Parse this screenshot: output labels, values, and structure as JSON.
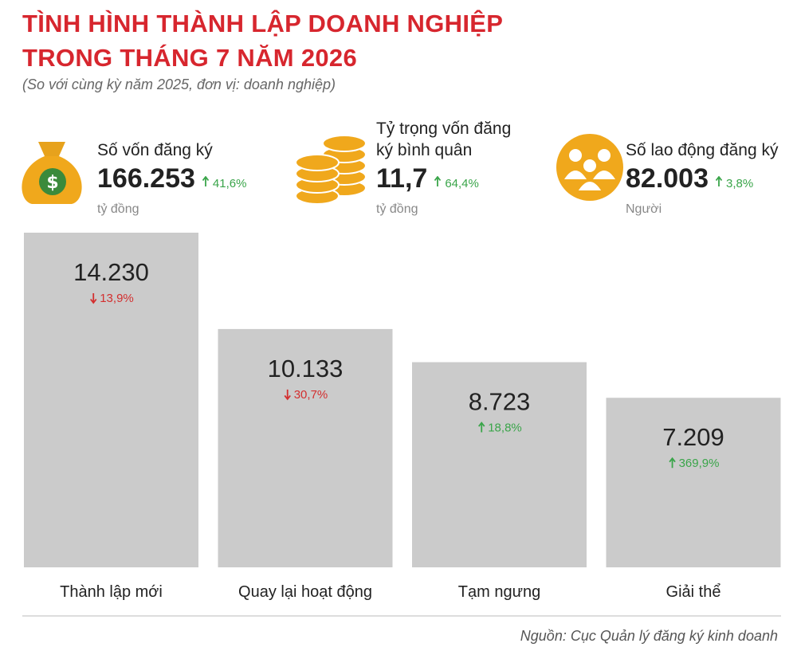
{
  "header": {
    "title_lines": [
      "TÌNH HÌNH THÀNH LẬP DOANH NGHIỆP",
      "TRONG THÁNG 7 NĂM 2026"
    ],
    "subtitle": "(So với cùng kỳ năm 2025, đơn vị: doanh nghiệp)"
  },
  "stats": [
    {
      "label": "Số vốn đăng ký",
      "value": "166.253",
      "change": "41,6%",
      "direction": "up",
      "unit": "tỷ đồng"
    },
    {
      "label": "Tỷ trọng vốn đăng ký bình quân",
      "value": "11,7",
      "change": "64,4%",
      "direction": "up",
      "unit": "tỷ đồng"
    },
    {
      "label": "Số lao động đăng ký",
      "value": "82.003",
      "change": "3,8%",
      "direction": "up",
      "unit": "Người"
    }
  ],
  "chart_data": {
    "type": "bar",
    "categories": [
      "Thành lập mới",
      "Quay lại hoạt động",
      "Tạm ngưng",
      "Giải thể"
    ],
    "values": [
      14230,
      10133,
      8723,
      7209
    ],
    "value_labels": [
      "14.230",
      "10.133",
      "8.723",
      "7.209"
    ],
    "changes": [
      "13,9%",
      "30,7%",
      "18,8%",
      "369,9%"
    ],
    "change_directions": [
      "down",
      "down",
      "up",
      "up"
    ],
    "color": "#cbcbcb"
  },
  "source": "Nguồn: Cục Quản lý đăng ký kinh doanh"
}
